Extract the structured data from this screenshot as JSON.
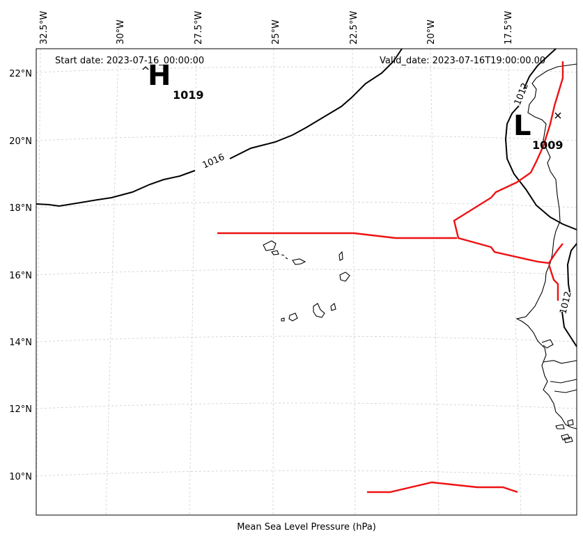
{
  "map": {
    "start_label": "Start date: 2023-07-16_00:00:00",
    "valid_label": "Valid_date: 2023-07-16T19:00:00.00",
    "xlabel": "Mean Sea Level Pressure (hPa)",
    "lon_ticks": [
      "32.5°W",
      "30°W",
      "27.5°W",
      "25°W",
      "22.5°W",
      "20°W",
      "17.5°W"
    ],
    "lat_ticks": [
      "22°N",
      "20°N",
      "18°N",
      "16°N",
      "14°N",
      "12°N",
      "10°N"
    ],
    "high": {
      "letter": "H",
      "value": "1019"
    },
    "low": {
      "letter": "L",
      "value": "1009"
    },
    "contour_labels": [
      "1016",
      "1012",
      "1012"
    ],
    "colors": {
      "front": "#ee1111",
      "contour": "#000000",
      "grid": "#cccccc",
      "coast": "#000000"
    }
  }
}
